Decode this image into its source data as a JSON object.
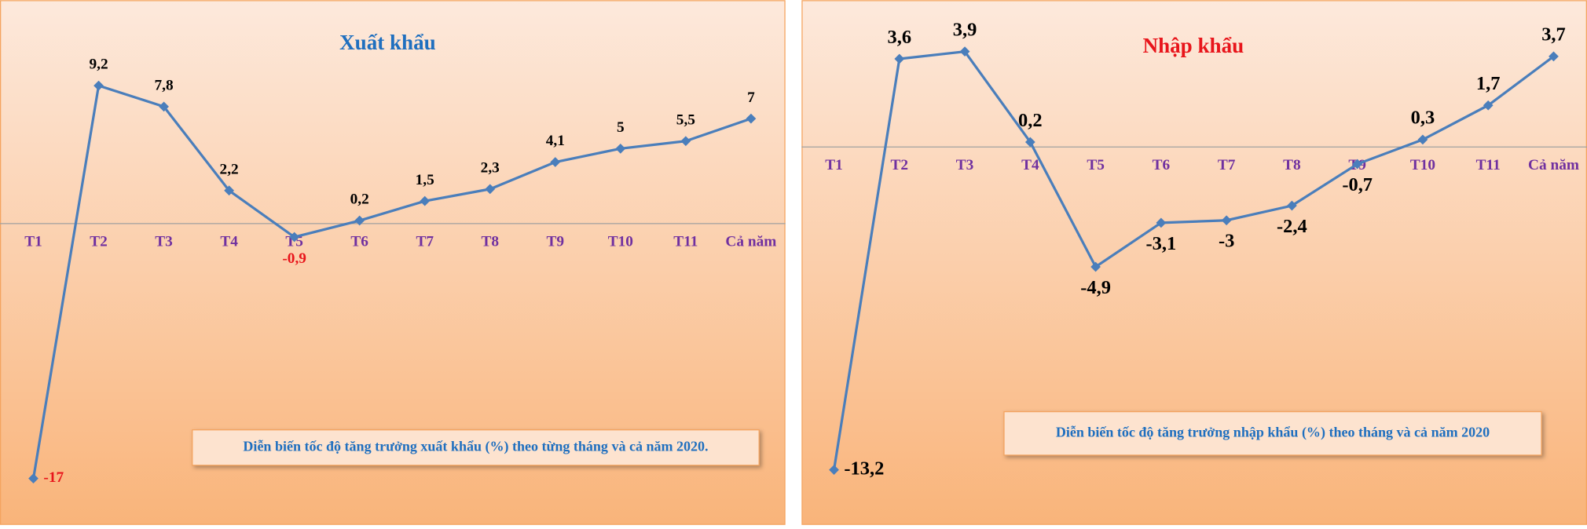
{
  "chart_data": [
    {
      "type": "line",
      "title": "Xuất khẩu",
      "title_color": "#1f6fbf",
      "annotation": "Diễn biến tốc độ tăng trưởng xuất khẩu (%) theo từng tháng và cả năm 2020.",
      "categories": [
        "T1",
        "T2",
        "T3",
        "T4",
        "T5",
        "T6",
        "T7",
        "T8",
        "T9",
        "T10",
        "T11",
        "Cả năm"
      ],
      "category_color": "#7030a0",
      "series": [
        {
          "name": "Xuất khẩu",
          "color": "#4a7ebb",
          "values": [
            -17,
            9.2,
            7.8,
            2.2,
            -0.9,
            0.2,
            1.5,
            2.3,
            4.1,
            5,
            5.5,
            7
          ],
          "value_labels": [
            "-17",
            "9,2",
            "7,8",
            "2,2",
            "-0,9",
            "0,2",
            "1,5",
            "2,3",
            "4,1",
            "5",
            "5,5",
            "7"
          ],
          "value_label_colors": [
            "#e8151b",
            "#000",
            "#000",
            "#000",
            "#e8151b",
            "#000",
            "#000",
            "#000",
            "#000",
            "#000",
            "#000",
            "#000"
          ]
        }
      ],
      "ylim": [
        -20.1,
        14.9
      ]
    },
    {
      "type": "line",
      "title": "Nhập khẩu",
      "title_color": "#e8151b",
      "annotation": "Diễn biến tốc độ tăng trưởng nhập khẩu (%) theo tháng và cả năm 2020",
      "categories": [
        "T1",
        "T2",
        "T3",
        "T4",
        "T5",
        "T6",
        "T7",
        "T8",
        "T9",
        "T10",
        "T11",
        "Cả năm"
      ],
      "category_color": "#7030a0",
      "series": [
        {
          "name": "Nhập khẩu",
          "color": "#4a7ebb",
          "values": [
            -13.2,
            3.6,
            3.9,
            0.2,
            -4.9,
            -3.1,
            -3,
            -2.4,
            -0.7,
            0.3,
            1.7,
            3.7
          ],
          "value_labels": [
            "-13,2",
            "3,6",
            "3,9",
            "0,2",
            "-4,9",
            "-3,1",
            "-3",
            "-2,4",
            "-0,7",
            "0,3",
            "1,7",
            "3,7"
          ],
          "value_label_colors": [
            "#000",
            "#000",
            "#000",
            "#000",
            "#000",
            "#000",
            "#000",
            "#000",
            "#000",
            "#000",
            "#000",
            "#000"
          ]
        }
      ],
      "ylim": [
        -15.45,
        6
      ]
    }
  ]
}
